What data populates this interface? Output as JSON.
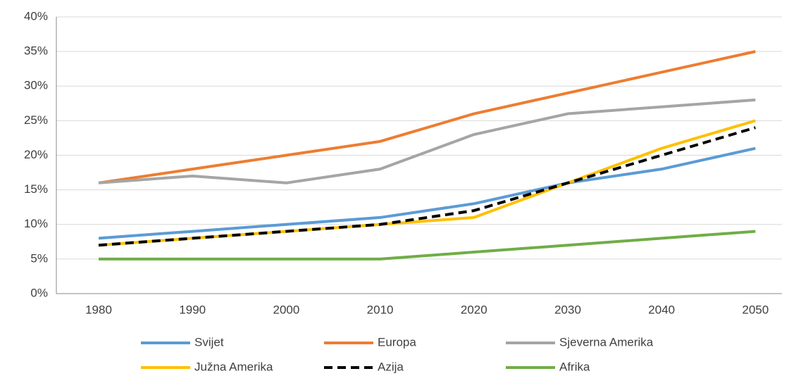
{
  "chart_data": {
    "type": "line",
    "categories": [
      "1980",
      "1990",
      "2000",
      "2010",
      "2020",
      "2030",
      "2040",
      "2050"
    ],
    "ylim": [
      0,
      40
    ],
    "yticks": [
      {
        "value": 0,
        "label": "0%"
      },
      {
        "value": 5,
        "label": "5%"
      },
      {
        "value": 10,
        "label": "10%"
      },
      {
        "value": 15,
        "label": "15%"
      },
      {
        "value": 20,
        "label": "20%"
      },
      {
        "value": 25,
        "label": "25%"
      },
      {
        "value": 30,
        "label": "30%"
      },
      {
        "value": 35,
        "label": "35%"
      },
      {
        "value": 40,
        "label": "40%"
      }
    ],
    "grid": true,
    "legend": "bottom",
    "series": [
      {
        "name": "Svijet",
        "color": "#5b9bd5",
        "values": [
          8,
          9,
          10,
          11,
          13,
          16,
          18,
          21
        ]
      },
      {
        "name": "Europa",
        "color": "#ed7d31",
        "values": [
          16,
          18,
          20,
          22,
          26,
          29,
          32,
          35
        ]
      },
      {
        "name": "Sjeverna Amerika",
        "color": "#a5a5a5",
        "values": [
          16,
          17,
          16,
          18,
          23,
          26,
          27,
          28
        ]
      },
      {
        "name": "Južna Amerika",
        "color": "#ffc000",
        "values": [
          7,
          8,
          9,
          10,
          11,
          16,
          21,
          25
        ]
      },
      {
        "name": "Azija",
        "color": "#000000",
        "dashed": true,
        "values": [
          7,
          8,
          9,
          10,
          12,
          16,
          20,
          24
        ]
      },
      {
        "name": "Afrika",
        "color": "#70ad47",
        "values": [
          5,
          5,
          5,
          5,
          6,
          7,
          8,
          9
        ]
      }
    ]
  }
}
